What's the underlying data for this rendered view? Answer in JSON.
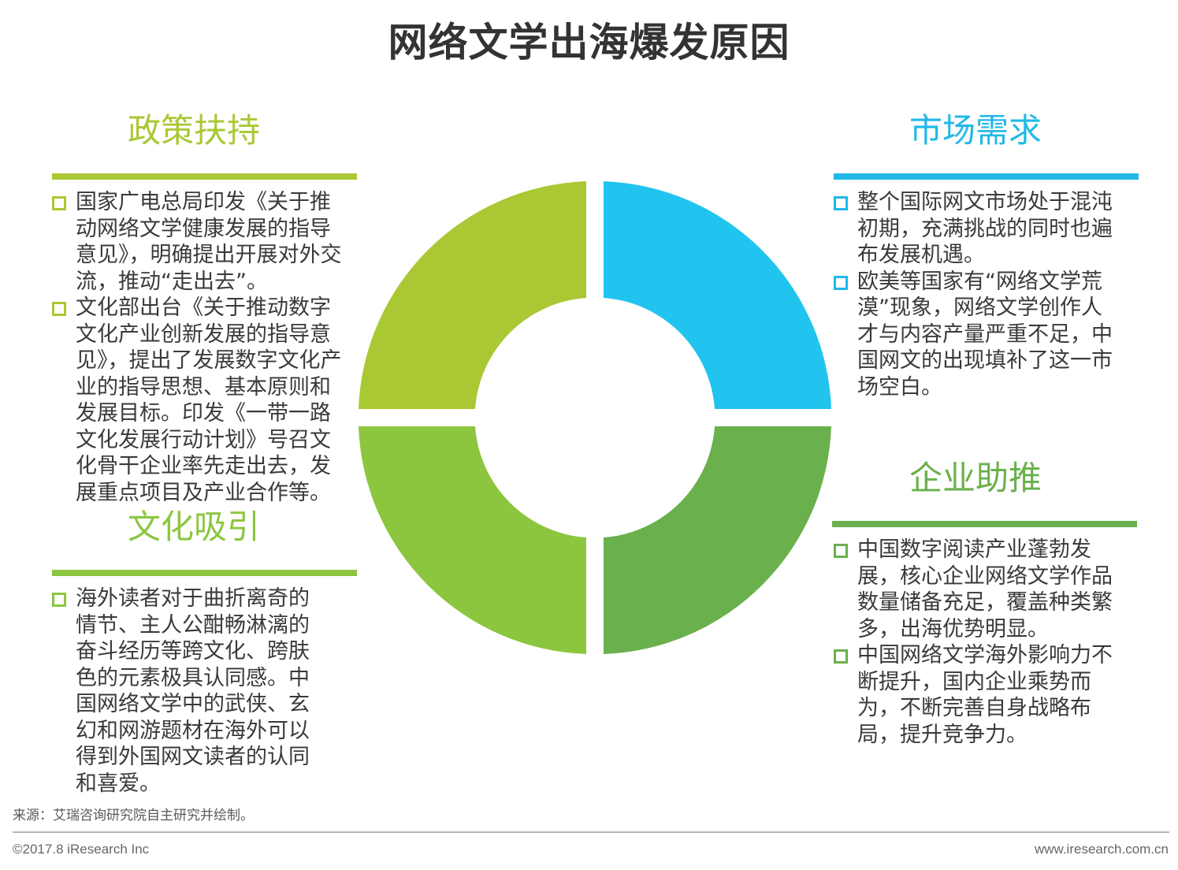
{
  "title": "网络文学出海爆发原因",
  "colors": {
    "policy": "#a9c833",
    "market": "#21b8e8",
    "culture": "#8cc63f",
    "enterprise": "#6ab04c"
  },
  "policy": {
    "heading": "政策扶持",
    "bullets": [
      "国家广电总局印发《关于推动网络文学健康发展的指导意见》，明确提出开展对外交流，推动“走出去”。",
      "文化部出台《关于推动数字文化产业创新发展的指导意见》，提出了发展数字文化产业的指导思想、基本原则和发展目标。印发《一带一路文化发展行动计划》号召文化骨干企业率先走出去，发展重点项目及产业合作等。"
    ]
  },
  "market": {
    "heading": "市场需求",
    "bullets": [
      "整个国际网文市场处于混沌初期，充满挑战的同时也遍布发展机遇。",
      "欧美等国家有“网络文学荒漠”现象，网络文学创作人才与内容产量严重不足，中国网文的出现填补了这一市场空白。"
    ]
  },
  "culture": {
    "heading": "文化吸引",
    "bullets": [
      "海外读者对于曲折离奇的情节、主人公酣畅淋漓的奋斗经历等跨文化、跨肤色的元素极具认同感。中国网络文学中的武侠、玄幻和网游题材在海外可以得到外国网文读者的认同和喜爱。"
    ]
  },
  "enterprise": {
    "heading": "企业助推",
    "bullets": [
      "中国数字阅读产业蓬勃发展，核心企业网络文学作品数量储备充足，覆盖种类繁多，出海优势明显。",
      "中国网络文学海外影响力不断提升，国内企业乘势而为，不断完善自身战略布局，提升竞争力。"
    ]
  },
  "footer": {
    "source": "来源：艾瑞咨询研究院自主研究并绘制。",
    "copyright": "©2017.8 iResearch Inc",
    "website": "www.iresearch.com.cn"
  }
}
